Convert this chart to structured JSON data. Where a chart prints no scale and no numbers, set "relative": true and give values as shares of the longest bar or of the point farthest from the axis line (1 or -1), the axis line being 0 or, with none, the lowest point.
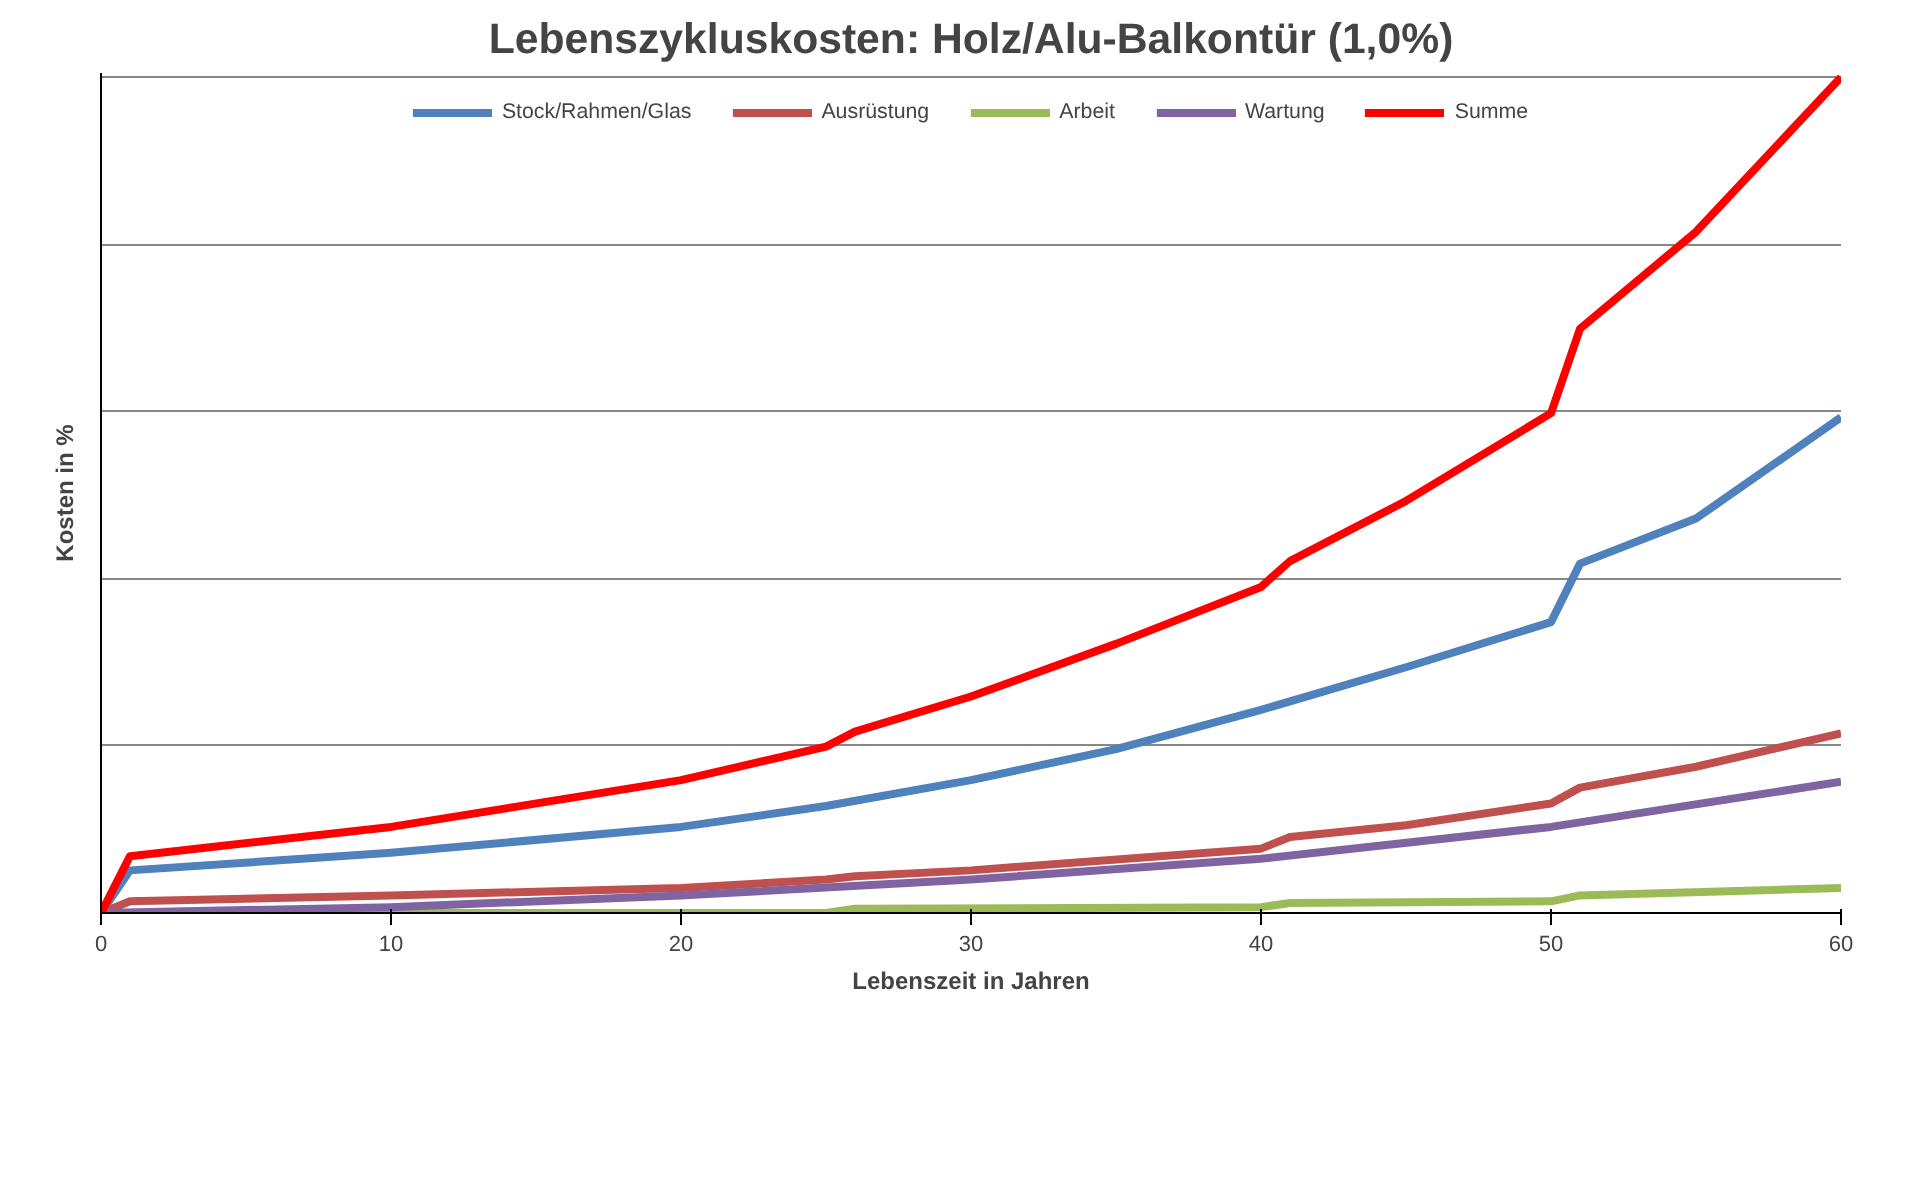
{
  "chart_data": {
    "type": "line",
    "title": "Lebenszykluskosten: Holz/Alu-Balkontür (1,0%)",
    "xlabel": "Lebenszeit in Jahren",
    "ylabel": "Kosten in %",
    "relative": true,
    "xlim": [
      0,
      60
    ],
    "xticks": [
      0,
      10,
      20,
      30,
      40,
      50,
      60
    ],
    "grid": "y",
    "legend": "top",
    "marker": "none",
    "line_style": "solid",
    "series": [
      {
        "name": "Stock/Rahmen/Glas",
        "color": "#4f81bd",
        "x": [
          0,
          1,
          10,
          20,
          25,
          30,
          35,
          40,
          45,
          50,
          51,
          55,
          60
        ],
        "values": [
          0,
          0.051,
          0.072,
          0.103,
          0.128,
          0.159,
          0.196,
          0.243,
          0.294,
          0.348,
          0.418,
          0.472,
          0.593
        ]
      },
      {
        "name": "Ausrüstung",
        "color": "#c0504d",
        "x": [
          0,
          1,
          10,
          20,
          25,
          26,
          30,
          40,
          41,
          45,
          50,
          51,
          55,
          60
        ],
        "values": [
          0,
          0.014,
          0.021,
          0.03,
          0.04,
          0.044,
          0.051,
          0.077,
          0.091,
          0.105,
          0.131,
          0.15,
          0.175,
          0.215
        ]
      },
      {
        "name": "Arbeit",
        "color": "#9bbb59",
        "x": [
          0,
          25,
          26,
          40,
          41,
          50,
          51,
          60
        ],
        "values": [
          0,
          0,
          0.005,
          0.007,
          0.012,
          0.014,
          0.021,
          0.03
        ]
      },
      {
        "name": "Wartung",
        "color": "#8064a2",
        "x": [
          0,
          10,
          20,
          30,
          40,
          50,
          60
        ],
        "values": [
          0,
          0.007,
          0.021,
          0.04,
          0.065,
          0.103,
          0.157
        ]
      },
      {
        "name": "Summe",
        "color": "#ff0000",
        "x": [
          0,
          1,
          10,
          20,
          25,
          26,
          30,
          35,
          40,
          41,
          45,
          50,
          51,
          55,
          60
        ],
        "values": [
          0,
          0.068,
          0.103,
          0.159,
          0.199,
          0.217,
          0.259,
          0.322,
          0.39,
          0.421,
          0.493,
          0.598,
          0.699,
          0.815,
          1
        ]
      }
    ]
  }
}
